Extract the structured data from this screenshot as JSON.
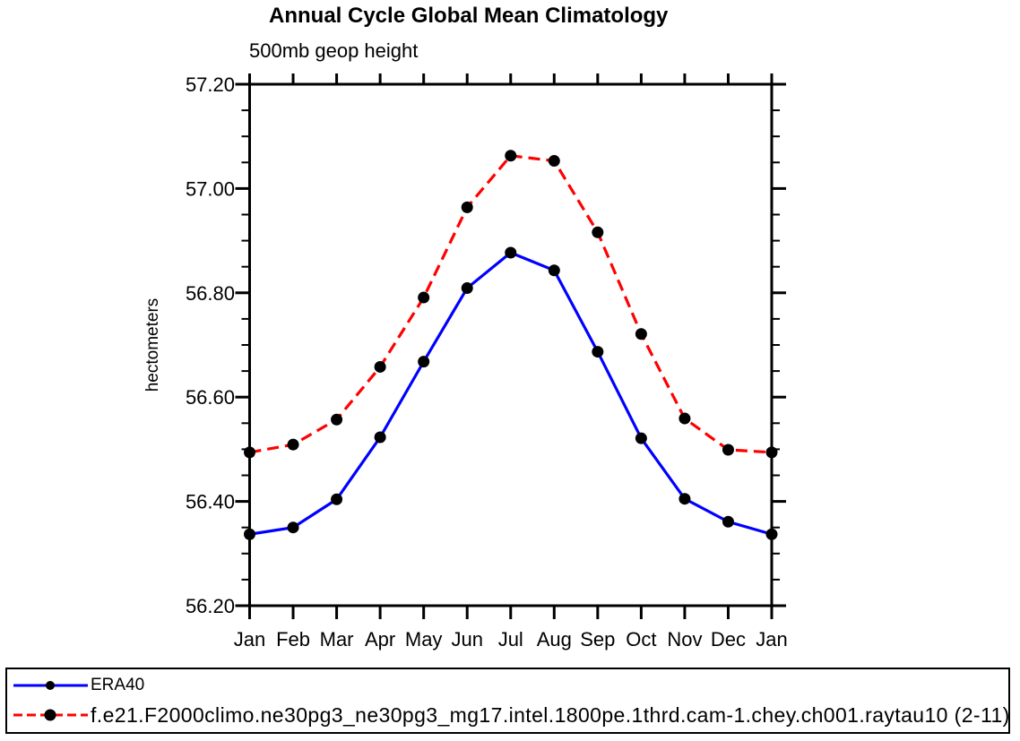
{
  "chart_data": {
    "type": "line",
    "title": "Annual Cycle Global Mean Climatology",
    "subtitle": "500mb geop height",
    "ylabel": "hectometers",
    "categories": [
      "Jan",
      "Feb",
      "Mar",
      "Apr",
      "May",
      "Jun",
      "Jul",
      "Aug",
      "Sep",
      "Oct",
      "Nov",
      "Dec",
      "Jan"
    ],
    "series": [
      {
        "name": "ERA40",
        "color": "#0000ff",
        "line_style": "solid",
        "marker": "filled-circle",
        "marker_color": "#000000",
        "values": [
          56.337,
          56.35,
          56.404,
          56.523,
          56.668,
          56.809,
          56.877,
          56.843,
          56.687,
          56.521,
          56.405,
          56.361,
          56.337
        ]
      },
      {
        "name": "f.e21.F2000climo.ne30pg3_ne30pg3_mg17.intel.1800pe.1thrd.cam-1.chey.ch001.raytau10 (2-11)",
        "color": "#ff0000",
        "line_style": "dashed",
        "marker": "filled-circle",
        "marker_color": "#000000",
        "values": [
          56.494,
          56.509,
          56.557,
          56.658,
          56.791,
          56.964,
          57.063,
          57.053,
          56.916,
          56.721,
          56.559,
          56.499,
          56.494
        ]
      }
    ],
    "ylim": [
      56.2,
      57.2
    ],
    "ytick_step": 0.2,
    "ytick_minor_step": 0.05,
    "ytick_labels": [
      "56.20",
      "56.40",
      "56.60",
      "56.80",
      "57.00",
      "57.20"
    ],
    "grid": false,
    "axis_color": "#000000",
    "legend_position": "bottom-box"
  }
}
